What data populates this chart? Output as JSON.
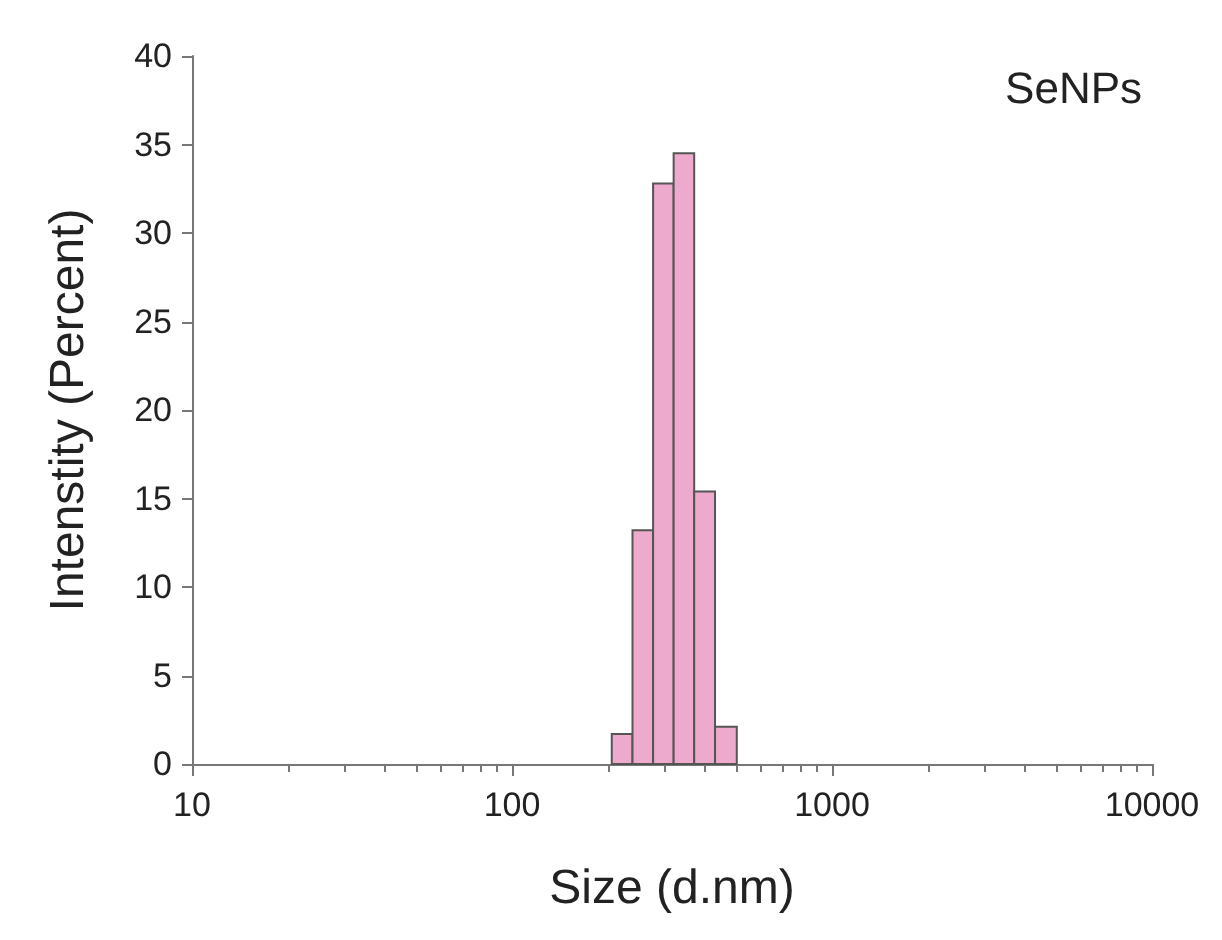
{
  "chart_data": {
    "type": "histogram",
    "xlabel": "Size (d.nm)",
    "ylabel": "Intenstity (Percent)",
    "annotations": [
      "SeNPs"
    ],
    "bins": [
      205,
      238,
      276,
      320,
      371,
      431,
      504
    ],
    "values": [
      1.7,
      13.2,
      32.8,
      34.5,
      15.4,
      2.1
    ],
    "color": "#eeaacc",
    "log": "x",
    "xlim": [
      10,
      10000
    ],
    "xticks": [
      10,
      100,
      1000,
      10000
    ],
    "ylim": [
      0,
      40
    ],
    "yticks": [
      0,
      5,
      10,
      15,
      20,
      25,
      30,
      35,
      40
    ],
    "grid": false
  }
}
